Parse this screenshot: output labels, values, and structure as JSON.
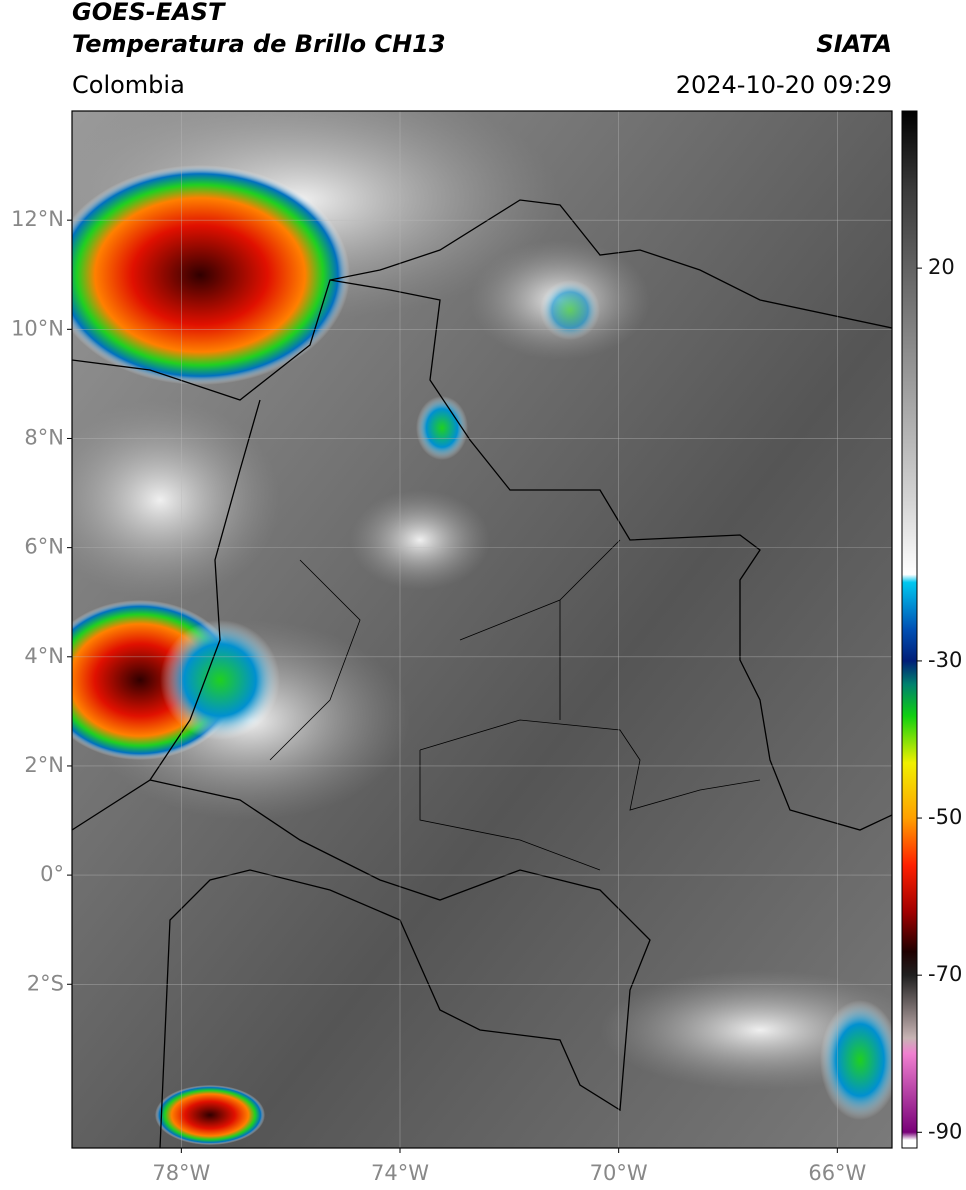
{
  "header": {
    "title": "GOES-EAST",
    "subtitle": "Temperatura de Brillo CH13",
    "region": "Colombia",
    "source": "SIATA",
    "datetime": "2024-10-20 09:29"
  },
  "map": {
    "xlim": [
      -80,
      -65
    ],
    "ylim": [
      -5,
      14
    ],
    "xticks": [
      {
        "value": -78,
        "label": "78°W"
      },
      {
        "value": -74,
        "label": "74°W"
      },
      {
        "value": -70,
        "label": "70°W"
      },
      {
        "value": -66,
        "label": "66°W"
      }
    ],
    "yticks": [
      {
        "value": 12,
        "label": "12°N"
      },
      {
        "value": 10,
        "label": "10°N"
      },
      {
        "value": 8,
        "label": "8°N"
      },
      {
        "value": 6,
        "label": "6°N"
      },
      {
        "value": 4,
        "label": "4°N"
      },
      {
        "value": 2,
        "label": "2°N"
      },
      {
        "value": 0,
        "label": "0°"
      },
      {
        "value": -2,
        "label": "2°S"
      }
    ],
    "grid": true
  },
  "colorbar": {
    "clim": [
      -92,
      40
    ],
    "ticks": [
      20,
      -30,
      -50,
      -70,
      -90
    ],
    "stops": [
      {
        "value": 40,
        "color": "#000000"
      },
      {
        "value": 30,
        "color": "#3a3a3a"
      },
      {
        "value": 10,
        "color": "#8a8a8a"
      },
      {
        "value": -10,
        "color": "#d6d6d6"
      },
      {
        "value": -19,
        "color": "#ffffff"
      },
      {
        "value": -20,
        "color": "#00c8f0"
      },
      {
        "value": -26,
        "color": "#0050b4"
      },
      {
        "value": -30,
        "color": "#001e78"
      },
      {
        "value": -33,
        "color": "#00826e"
      },
      {
        "value": -37,
        "color": "#10d010"
      },
      {
        "value": -43,
        "color": "#f0f000"
      },
      {
        "value": -50,
        "color": "#ffa000"
      },
      {
        "value": -56,
        "color": "#ff2000"
      },
      {
        "value": -62,
        "color": "#a00000"
      },
      {
        "value": -67,
        "color": "#200000"
      },
      {
        "value": -70,
        "color": "#202020"
      },
      {
        "value": -78,
        "color": "#c8b4b4"
      },
      {
        "value": -80,
        "color": "#f080d0"
      },
      {
        "value": -90,
        "color": "#780078"
      },
      {
        "value": -91,
        "color": "#ffffff"
      }
    ]
  }
}
